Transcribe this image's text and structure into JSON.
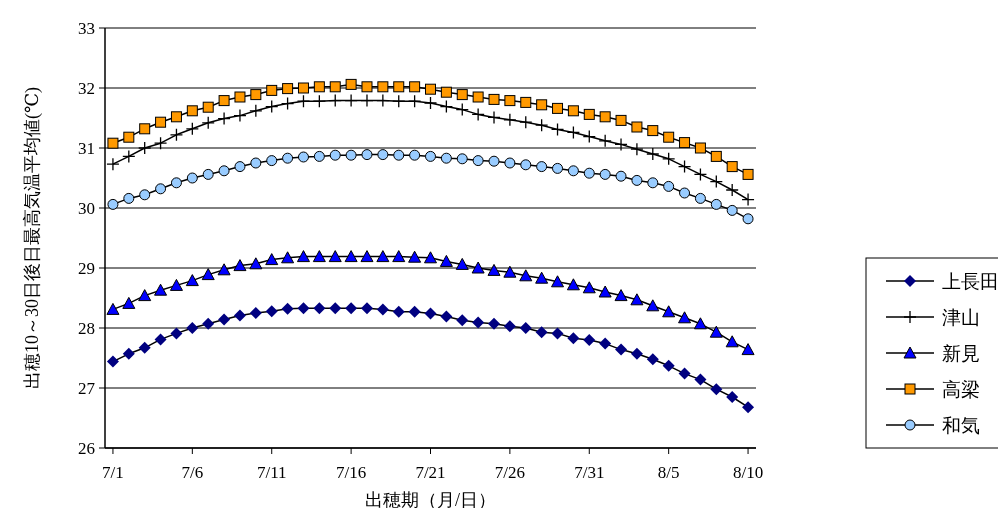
{
  "chart_data": {
    "type": "line",
    "xlabel": "出穂期（月/日）",
    "ylabel": "出穂10～30日後日最高気温平均値(℃)",
    "categories": [
      "7/1",
      null,
      null,
      null,
      null,
      "7/6",
      null,
      null,
      null,
      null,
      "7/11",
      null,
      null,
      null,
      null,
      "7/16",
      null,
      null,
      null,
      null,
      "7/21",
      null,
      null,
      null,
      null,
      "7/26",
      null,
      null,
      null,
      null,
      "7/31",
      null,
      null,
      null,
      null,
      "8/5",
      null,
      null,
      null,
      null,
      "8/10"
    ],
    "ylim": [
      26,
      33
    ],
    "yticks": [
      26,
      27,
      28,
      29,
      30,
      31,
      32,
      33
    ],
    "grid": "y",
    "legend": "right",
    "line_style": "solid",
    "series": [
      {
        "name": "上長田",
        "color": "#000080",
        "marker": "diamond",
        "values": [
          27.44,
          27.57,
          27.67,
          27.81,
          27.91,
          28.0,
          28.07,
          28.14,
          28.21,
          28.25,
          28.28,
          28.32,
          28.33,
          28.33,
          28.33,
          28.33,
          28.33,
          28.31,
          28.27,
          28.27,
          28.24,
          28.19,
          28.13,
          28.09,
          28.07,
          28.03,
          28.0,
          27.93,
          27.91,
          27.83,
          27.8,
          27.74,
          27.64,
          27.57,
          27.48,
          27.37,
          27.24,
          27.14,
          26.98,
          26.85,
          26.68
        ]
      },
      {
        "name": "津山",
        "color": "#000000",
        "marker": "cross",
        "values": [
          30.73,
          30.86,
          31.0,
          31.08,
          31.22,
          31.32,
          31.42,
          31.49,
          31.54,
          31.62,
          31.69,
          31.74,
          31.78,
          31.78,
          31.79,
          31.79,
          31.79,
          31.79,
          31.78,
          31.78,
          31.75,
          31.69,
          31.64,
          31.56,
          31.51,
          31.47,
          31.43,
          31.38,
          31.31,
          31.26,
          31.19,
          31.12,
          31.06,
          30.98,
          30.9,
          30.82,
          30.69,
          30.56,
          30.44,
          30.3,
          30.14
        ]
      },
      {
        "name": "新見",
        "color": "#0000ff",
        "marker": "triangle",
        "values": [
          28.31,
          28.41,
          28.54,
          28.63,
          28.71,
          28.79,
          28.89,
          28.97,
          29.04,
          29.07,
          29.14,
          29.17,
          29.19,
          29.19,
          29.19,
          29.19,
          29.19,
          29.19,
          29.19,
          29.18,
          29.17,
          29.11,
          29.06,
          29.0,
          28.96,
          28.93,
          28.87,
          28.83,
          28.77,
          28.72,
          28.67,
          28.6,
          28.54,
          28.47,
          28.37,
          28.27,
          28.17,
          28.07,
          27.93,
          27.77,
          27.64
        ]
      },
      {
        "name": "高梁",
        "color": "#ff9900",
        "marker": "square",
        "values": [
          31.08,
          31.18,
          31.32,
          31.43,
          31.52,
          31.62,
          31.68,
          31.79,
          31.85,
          31.89,
          31.96,
          31.99,
          32.0,
          32.02,
          32.02,
          32.06,
          32.02,
          32.02,
          32.02,
          32.02,
          31.98,
          31.93,
          31.89,
          31.85,
          31.81,
          31.79,
          31.76,
          31.72,
          31.66,
          31.62,
          31.56,
          31.52,
          31.46,
          31.35,
          31.29,
          31.18,
          31.09,
          31.0,
          30.86,
          30.69,
          30.56
        ]
      },
      {
        "name": "和気",
        "color": "#99ccff",
        "marker": "circle",
        "values": [
          30.06,
          30.16,
          30.22,
          30.32,
          30.42,
          30.5,
          30.56,
          30.62,
          30.69,
          30.75,
          30.79,
          30.83,
          30.85,
          30.86,
          30.88,
          30.88,
          30.89,
          30.89,
          30.88,
          30.88,
          30.86,
          30.83,
          30.82,
          30.79,
          30.78,
          30.75,
          30.72,
          30.69,
          30.66,
          30.62,
          30.58,
          30.56,
          30.53,
          30.46,
          30.42,
          30.36,
          30.25,
          30.16,
          30.06,
          29.96,
          29.82
        ]
      }
    ]
  }
}
